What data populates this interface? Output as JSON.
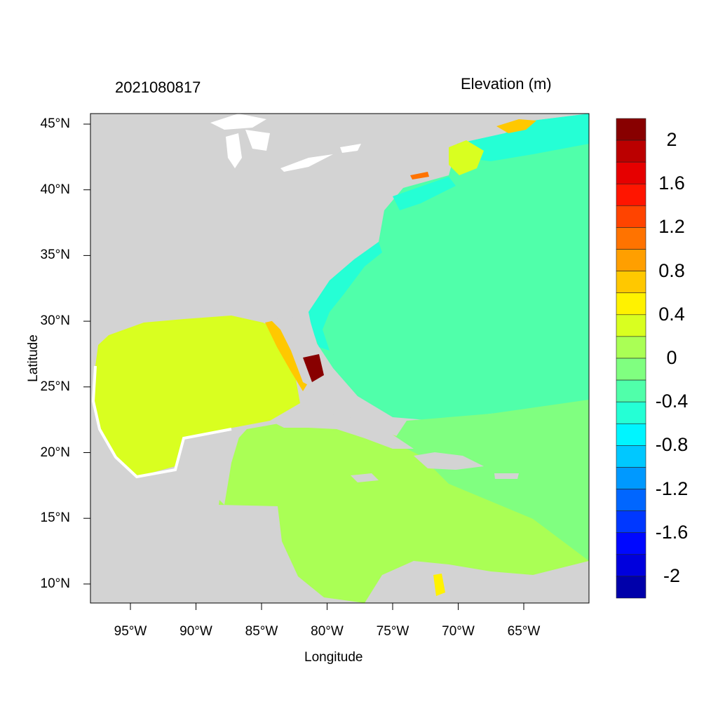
{
  "map": {
    "title_left": "2021080817",
    "title_right": "Elevation (m)",
    "xlabel": "Longitude",
    "ylabel": "Latitude",
    "lon_range": [
      -98,
      -60
    ],
    "lat_range": [
      8.6,
      45.8
    ],
    "x_ticks": [
      "95°W",
      "90°W",
      "85°W",
      "80°W",
      "75°W",
      "70°W",
      "65°W"
    ],
    "x_tick_values": [
      -95,
      -90,
      -85,
      -80,
      -75,
      -70,
      -65
    ],
    "y_ticks": [
      "45°N",
      "40°N",
      "35°N",
      "30°N",
      "25°N",
      "20°N",
      "15°N",
      "10°N"
    ],
    "y_tick_values": [
      45,
      40,
      35,
      30,
      25,
      20,
      15,
      10
    ],
    "land_color": "#d3d3d3",
    "lake_color": "#ffffff"
  },
  "colorbar": {
    "range": [
      -2.2,
      2.2
    ],
    "step": 0.2,
    "labels": [
      "2",
      "1.6",
      "1.2",
      "0.8",
      "0.4",
      "0",
      "-0.4",
      "-0.8",
      "-1.2",
      "-1.6",
      "-2"
    ],
    "label_values": [
      2,
      1.6,
      1.2,
      0.8,
      0.4,
      0,
      -0.4,
      -0.8,
      -1.2,
      -1.6,
      -2
    ],
    "colors_top_to_bottom": [
      "#880000",
      "#bb0000",
      "#e60000",
      "#ff1500",
      "#ff4400",
      "#ff7300",
      "#ff9f00",
      "#ffc800",
      "#fff200",
      "#d9ff20",
      "#aaff55",
      "#80ff80",
      "#50ffaa",
      "#25ffd5",
      "#00f5ff",
      "#00c8ff",
      "#0099ff",
      "#0066ff",
      "#0038ff",
      "#0008ff",
      "#0000dd",
      "#0000aa"
    ]
  }
}
